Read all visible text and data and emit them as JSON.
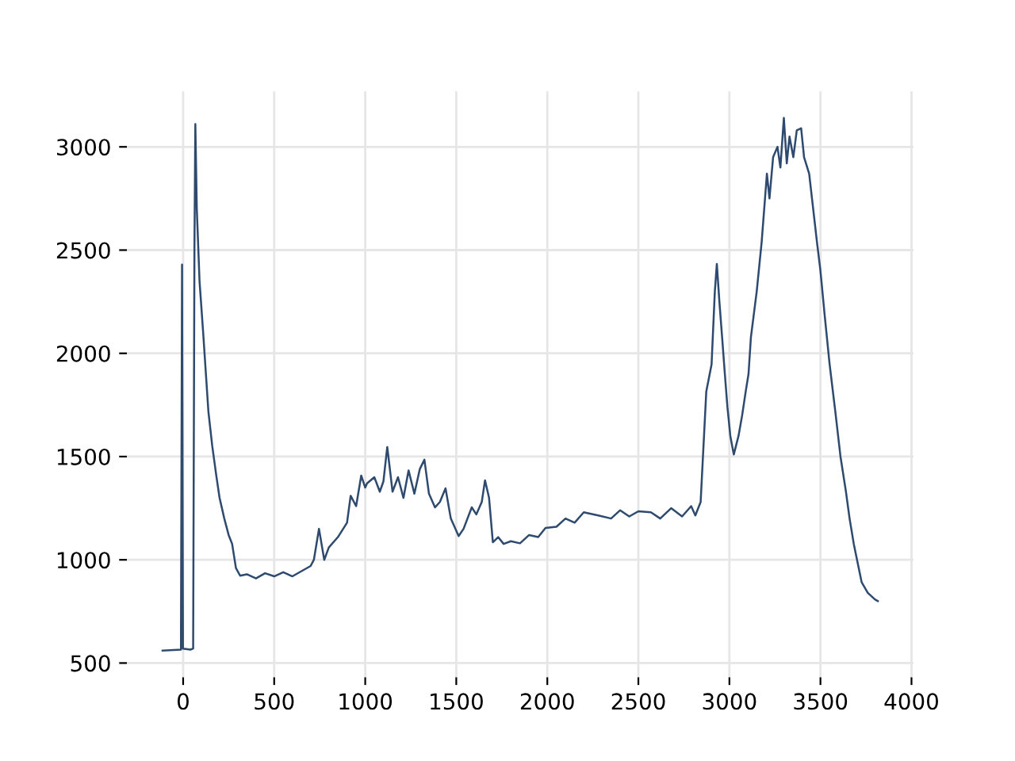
{
  "chart_data": {
    "type": "line",
    "x": [
      -113,
      -12,
      -6,
      -1,
      40,
      55,
      62,
      67,
      75,
      90,
      110,
      125,
      139,
      160,
      182,
      200,
      226,
      250,
      269,
      290,
      313,
      350,
      400,
      450,
      500,
      550,
      600,
      650,
      700,
      718,
      746,
      775,
      800,
      850,
      900,
      920,
      950,
      978,
      1000,
      1010,
      1050,
      1080,
      1100,
      1121,
      1150,
      1180,
      1210,
      1238,
      1270,
      1300,
      1325,
      1350,
      1383,
      1410,
      1441,
      1470,
      1513,
      1540,
      1585,
      1610,
      1640,
      1658,
      1680,
      1701,
      1730,
      1760,
      1800,
      1850,
      1900,
      1950,
      1990,
      2050,
      2100,
      2150,
      2200,
      2280,
      2350,
      2400,
      2450,
      2500,
      2569,
      2620,
      2680,
      2740,
      2790,
      2813,
      2842,
      2873,
      2902,
      2920,
      2931,
      2945,
      2960,
      2975,
      2989,
      3005,
      3024,
      3050,
      3070,
      3090,
      3105,
      3118,
      3150,
      3177,
      3206,
      3220,
      3240,
      3264,
      3280,
      3299,
      3315,
      3330,
      3351,
      3370,
      3394,
      3410,
      3438,
      3460,
      3481,
      3500,
      3524,
      3550,
      3582,
      3610,
      3640,
      3660,
      3683,
      3726,
      3760,
      3799,
      3815
    ],
    "series": [
      {
        "color": "#2e4a6e",
        "values": [
          560,
          565,
          2430,
          570,
          565,
          570,
          2500,
          3110,
          2700,
          2350,
          2100,
          1900,
          1715,
          1550,
          1408,
          1300,
          1200,
          1120,
          1077,
          960,
          923,
          930,
          910,
          935,
          920,
          940,
          920,
          945,
          970,
          1000,
          1150,
          1000,
          1060,
          1110,
          1180,
          1310,
          1260,
          1408,
          1350,
          1370,
          1400,
          1330,
          1380,
          1546,
          1330,
          1400,
          1300,
          1433,
          1320,
          1440,
          1485,
          1320,
          1254,
          1280,
          1346,
          1200,
          1115,
          1150,
          1254,
          1220,
          1280,
          1385,
          1300,
          1085,
          1110,
          1077,
          1090,
          1080,
          1120,
          1110,
          1154,
          1160,
          1200,
          1180,
          1230,
          1215,
          1200,
          1240,
          1210,
          1235,
          1230,
          1200,
          1250,
          1210,
          1260,
          1215,
          1280,
          1815,
          1946,
          2300,
          2433,
          2250,
          2077,
          1900,
          1741,
          1600,
          1510,
          1600,
          1700,
          1818,
          1900,
          2077,
          2300,
          2538,
          2870,
          2750,
          2950,
          3000,
          2900,
          3140,
          2920,
          3050,
          2950,
          3080,
          3090,
          2950,
          2870,
          2700,
          2538,
          2400,
          2177,
          1950,
          1715,
          1500,
          1330,
          1200,
          1077,
          892,
          840,
          808,
          800
        ]
      }
    ],
    "xlim": [
      -309,
      4011
    ],
    "ylim": [
      431,
      3269
    ],
    "xticks": [
      0,
      500,
      1000,
      1500,
      2000,
      2500,
      3000,
      3500,
      4000
    ],
    "yticks": [
      500,
      1000,
      1500,
      2000,
      2500,
      3000
    ],
    "grid": true
  }
}
